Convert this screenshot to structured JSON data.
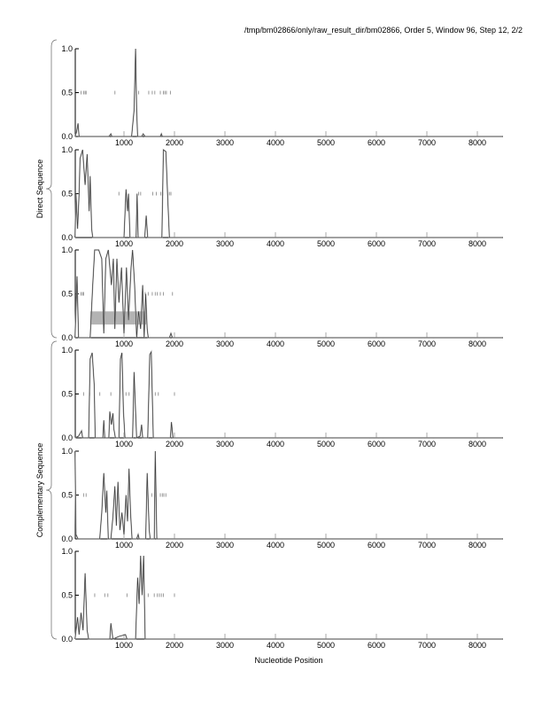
{
  "header": {
    "title": "/tmp/bm02866/only/raw_result_dir/bm02866, Order 5, Window 96, Step 12, 2/2"
  },
  "chart_data": {
    "type": "line",
    "xlabel": "Nucleotide Position",
    "xlim": [
      30,
      8500
    ],
    "ylim": [
      0,
      1
    ],
    "x_ticks": [
      "1000",
      "2000",
      "3000",
      "4000",
      "5000",
      "6000",
      "7000",
      "8000"
    ],
    "y_ticks": [
      "0.0",
      "0.5",
      "1.0"
    ],
    "groups": [
      {
        "label": "Direct Sequence",
        "panels": [
          0,
          1,
          2
        ]
      },
      {
        "label": "Complementary Sequence",
        "panels": [
          3,
          4,
          5
        ]
      }
    ],
    "line_color": "#333333",
    "marker_color": "#999999",
    "box_color": "#b3b3b3",
    "panels": [
      {
        "points": [
          [
            30,
            0
          ],
          [
            60,
            0.05
          ],
          [
            90,
            0.15
          ],
          [
            110,
            0
          ],
          [
            700,
            0
          ],
          [
            740,
            0.03
          ],
          [
            760,
            0
          ],
          [
            1150,
            0
          ],
          [
            1200,
            0.3
          ],
          [
            1230,
            1.0
          ],
          [
            1250,
            0.3
          ],
          [
            1270,
            0
          ],
          [
            1350,
            0
          ],
          [
            1380,
            0.03
          ],
          [
            1420,
            0
          ],
          [
            1720,
            0
          ],
          [
            1740,
            0.03
          ],
          [
            1760,
            0
          ],
          [
            8500,
            0
          ]
        ],
        "markers": [
          150,
          200,
          230,
          250,
          820,
          1290,
          1490,
          1560,
          1610,
          1720,
          1780,
          1810,
          1840,
          1920
        ]
      },
      {
        "points": [
          [
            30,
            0
          ],
          [
            50,
            0.5
          ],
          [
            80,
            0.1
          ],
          [
            110,
            0.5
          ],
          [
            130,
            0.9
          ],
          [
            180,
            1.0
          ],
          [
            230,
            0.6
          ],
          [
            270,
            0.95
          ],
          [
            310,
            0.3
          ],
          [
            330,
            0.7
          ],
          [
            360,
            0.1
          ],
          [
            380,
            0
          ],
          [
            1000,
            0
          ],
          [
            1040,
            0.55
          ],
          [
            1070,
            0.3
          ],
          [
            1090,
            0.5
          ],
          [
            1120,
            0
          ],
          [
            1240,
            0
          ],
          [
            1260,
            0.5
          ],
          [
            1280,
            0
          ],
          [
            1410,
            0
          ],
          [
            1440,
            0.25
          ],
          [
            1470,
            0
          ],
          [
            1750,
            0
          ],
          [
            1780,
            1.0
          ],
          [
            1830,
            0.98
          ],
          [
            1870,
            0.4
          ],
          [
            1900,
            0
          ],
          [
            8500,
            0
          ]
        ],
        "markers": [
          900,
          1290,
          1330,
          1570,
          1640,
          1730,
          1770,
          1900,
          1930
        ]
      },
      {
        "points": [
          [
            30,
            0
          ],
          [
            70,
            0.7
          ],
          [
            100,
            0
          ],
          [
            330,
            0
          ],
          [
            380,
            0.6
          ],
          [
            420,
            1.0
          ],
          [
            500,
            1.0
          ],
          [
            560,
            0.9
          ],
          [
            600,
            0.05
          ],
          [
            640,
            0.9
          ],
          [
            690,
            1.0
          ],
          [
            750,
            0.6
          ],
          [
            790,
            0.9
          ],
          [
            820,
            0.1
          ],
          [
            860,
            0.9
          ],
          [
            900,
            0.4
          ],
          [
            950,
            0.8
          ],
          [
            1000,
            0.05
          ],
          [
            1050,
            0.8
          ],
          [
            1090,
            0.2
          ],
          [
            1140,
            0.8
          ],
          [
            1170,
            1.0
          ],
          [
            1210,
            0.6
          ],
          [
            1250,
            0
          ],
          [
            1290,
            0.3
          ],
          [
            1330,
            0.1
          ],
          [
            1370,
            0.6
          ],
          [
            1400,
            0
          ],
          [
            1430,
            0.5
          ],
          [
            1460,
            0.1
          ],
          [
            1480,
            0
          ],
          [
            1900,
            0
          ],
          [
            1930,
            0.05
          ],
          [
            1960,
            0
          ],
          [
            8500,
            0
          ]
        ],
        "markers": [
          150,
          180,
          200,
          1420,
          1480,
          1560,
          1620,
          1660,
          1720,
          1780,
          1960
        ],
        "box": {
          "x": [
            330,
            1440
          ],
          "y": [
            0.15,
            0.3
          ]
        }
      },
      {
        "points": [
          [
            30,
            0
          ],
          [
            100,
            0.02
          ],
          [
            160,
            0.08
          ],
          [
            180,
            0
          ],
          [
            300,
            0
          ],
          [
            330,
            0.9
          ],
          [
            370,
            0.97
          ],
          [
            410,
            0.6
          ],
          [
            430,
            0
          ],
          [
            580,
            0
          ],
          [
            600,
            0.2
          ],
          [
            620,
            0
          ],
          [
            700,
            0
          ],
          [
            720,
            0.3
          ],
          [
            750,
            0.15
          ],
          [
            780,
            0.28
          ],
          [
            800,
            0.1
          ],
          [
            830,
            0
          ],
          [
            900,
            0
          ],
          [
            930,
            0.9
          ],
          [
            960,
            0.97
          ],
          [
            990,
            0.3
          ],
          [
            1020,
            0
          ],
          [
            1170,
            0
          ],
          [
            1200,
            0.75
          ],
          [
            1230,
            0.3
          ],
          [
            1250,
            0
          ],
          [
            1320,
            0.02
          ],
          [
            1350,
            0.15
          ],
          [
            1370,
            0
          ],
          [
            1470,
            0
          ],
          [
            1510,
            0.95
          ],
          [
            1540,
            0.98
          ],
          [
            1580,
            0
          ],
          [
            1920,
            0
          ],
          [
            1940,
            0.18
          ],
          [
            1970,
            0
          ],
          [
            8500,
            0
          ]
        ],
        "markers": [
          200,
          320,
          520,
          740,
          1040,
          1100,
          1490,
          1620,
          1680,
          2000
        ]
      },
      {
        "points": [
          [
            30,
            1.0
          ],
          [
            50,
            0.05
          ],
          [
            90,
            0
          ],
          [
            520,
            0
          ],
          [
            560,
            0.3
          ],
          [
            600,
            0.75
          ],
          [
            640,
            0.3
          ],
          [
            660,
            0.55
          ],
          [
            690,
            0
          ],
          [
            740,
            0
          ],
          [
            780,
            0.25
          ],
          [
            820,
            0.6
          ],
          [
            850,
            0.15
          ],
          [
            880,
            0.65
          ],
          [
            920,
            0.1
          ],
          [
            960,
            0.3
          ],
          [
            1000,
            0.05
          ],
          [
            1040,
            0.5
          ],
          [
            1070,
            0.2
          ],
          [
            1100,
            0.8
          ],
          [
            1130,
            0.3
          ],
          [
            1160,
            0
          ],
          [
            1250,
            0
          ],
          [
            1280,
            0.05
          ],
          [
            1300,
            0
          ],
          [
            1430,
            0
          ],
          [
            1460,
            0.75
          ],
          [
            1500,
            0.1
          ],
          [
            1520,
            0
          ],
          [
            1600,
            0
          ],
          [
            1620,
            1.0
          ],
          [
            1650,
            0
          ],
          [
            8500,
            0
          ]
        ],
        "markers": [
          200,
          250,
          1550,
          1620,
          1720,
          1760,
          1790,
          1830
        ]
      },
      {
        "points": [
          [
            30,
            0
          ],
          [
            80,
            0.25
          ],
          [
            110,
            0.05
          ],
          [
            150,
            0.3
          ],
          [
            190,
            0.1
          ],
          [
            230,
            0.75
          ],
          [
            270,
            0.1
          ],
          [
            300,
            0
          ],
          [
            720,
            0
          ],
          [
            740,
            0.18
          ],
          [
            780,
            0
          ],
          [
            900,
            0.03
          ],
          [
            1030,
            0.05
          ],
          [
            1060,
            0
          ],
          [
            1230,
            0
          ],
          [
            1270,
            0.7
          ],
          [
            1300,
            0.4
          ],
          [
            1330,
            0.95
          ],
          [
            1360,
            0.5
          ],
          [
            1390,
            0.95
          ],
          [
            1420,
            0
          ],
          [
            8500,
            0
          ]
        ],
        "markers": [
          420,
          620,
          680,
          1060,
          1480,
          1600,
          1660,
          1700,
          1740,
          1780,
          2000
        ]
      }
    ]
  }
}
